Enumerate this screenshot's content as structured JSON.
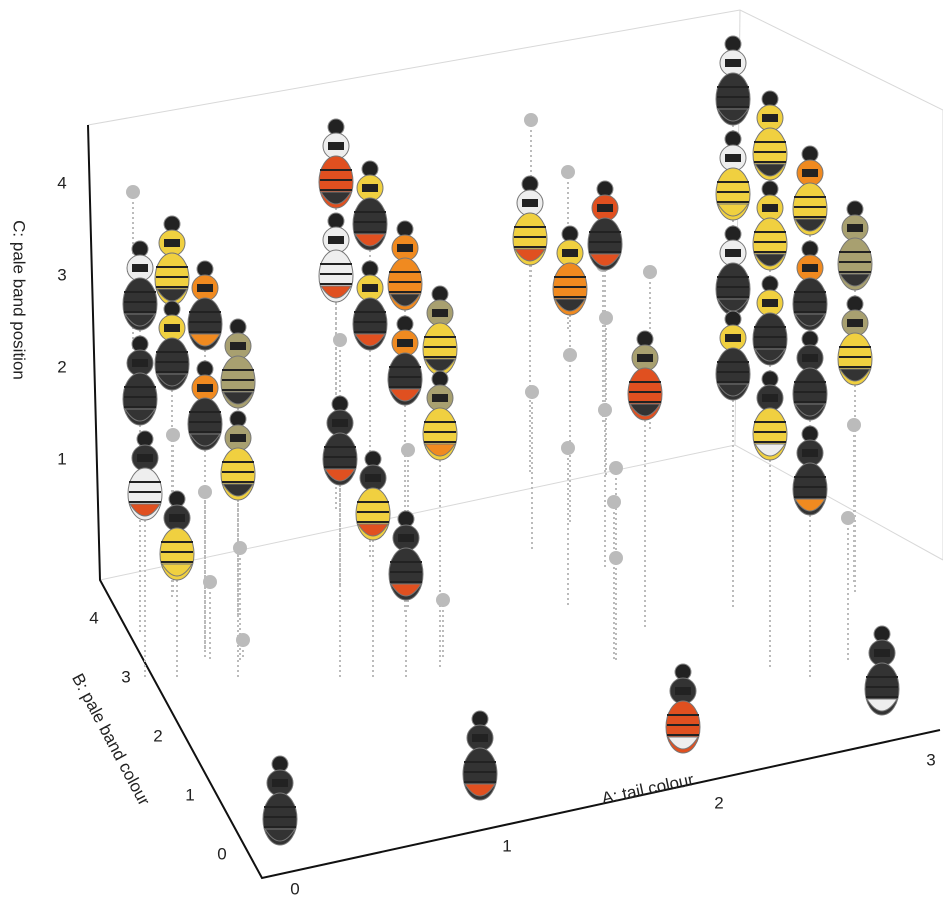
{
  "chart_data": {
    "type": "scatter3d",
    "xlabel": "A: tail colour",
    "ylabel": "B: pale band colour",
    "zlabel": "C: pale band position",
    "xticks": [
      0,
      1,
      2,
      3
    ],
    "yticks": [
      0,
      1,
      2,
      3,
      4
    ],
    "zticks": [
      1,
      2,
      3,
      4
    ]
  }
}
